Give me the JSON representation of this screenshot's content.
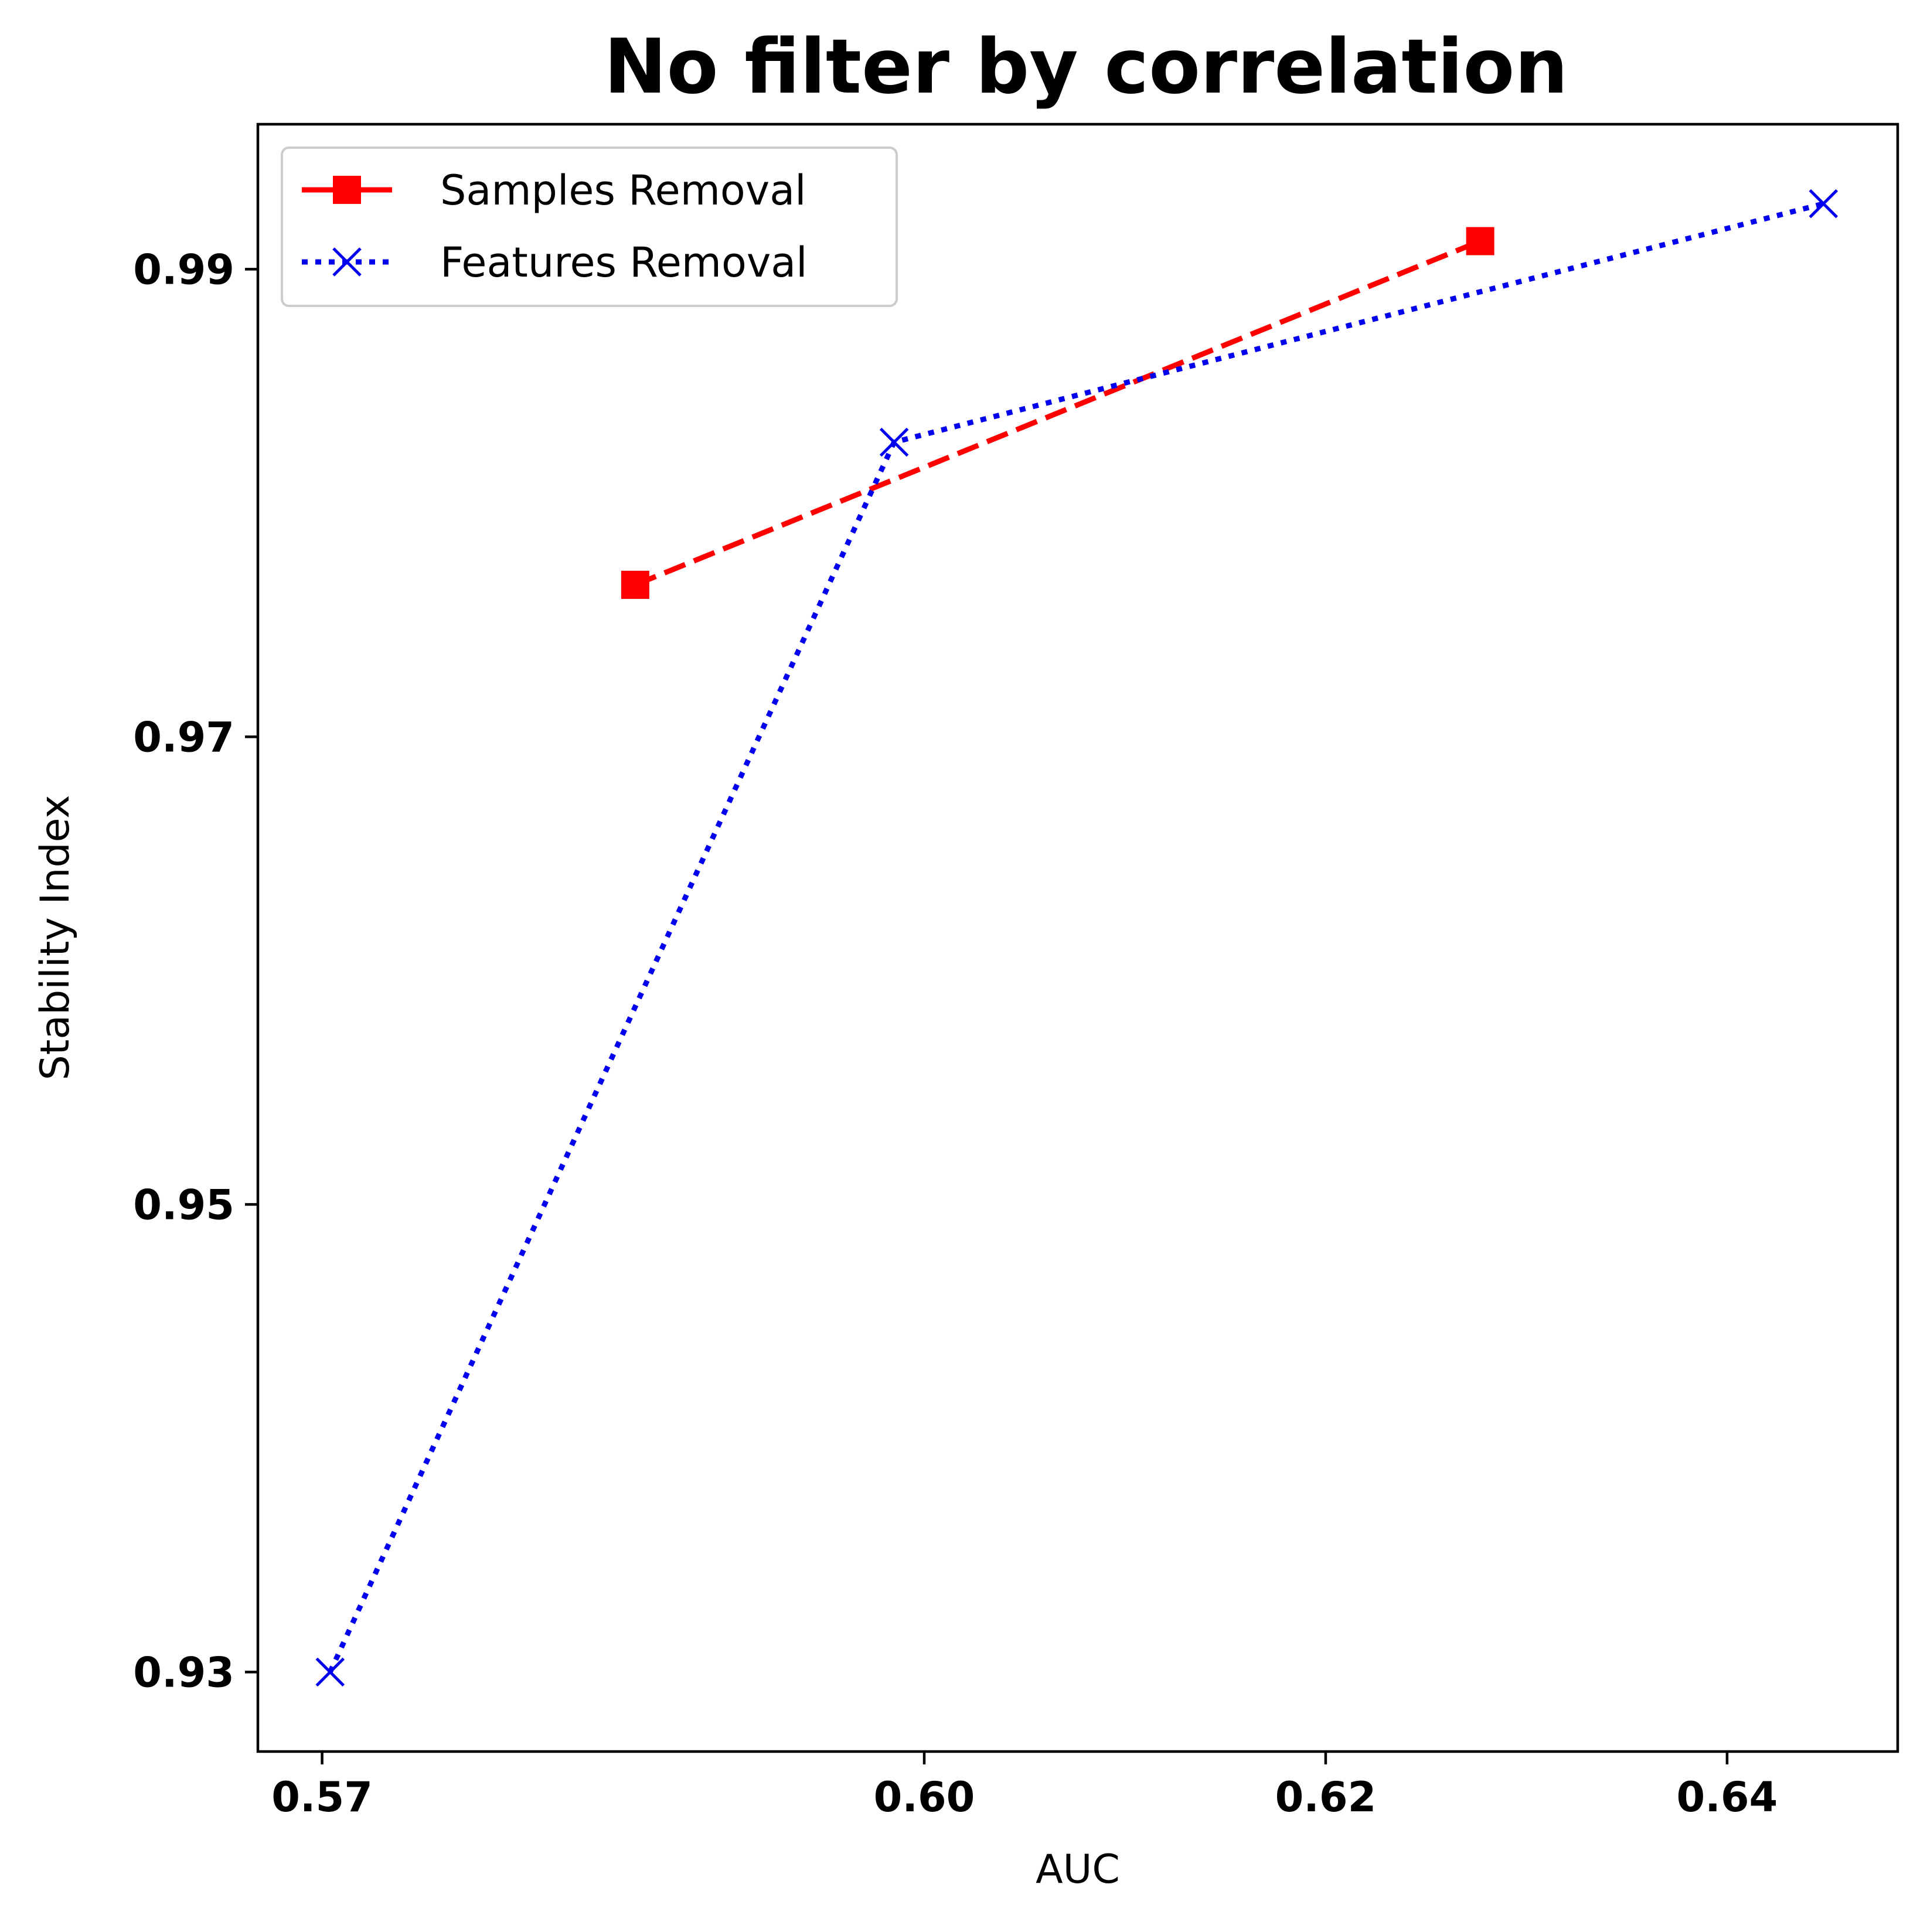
{
  "chart_data": {
    "type": "line",
    "title": "No filter by correlation",
    "xlabel": "AUC",
    "ylabel": "Stability Index",
    "xlim": [
      0.5668,
      0.6485
    ],
    "ylim": [
      0.9266,
      0.9962
    ],
    "xticks": [
      0.57,
      0.6,
      0.62,
      0.64
    ],
    "xtick_labels": [
      "0.57",
      "0.60",
      "0.62",
      "0.64"
    ],
    "yticks": [
      0.93,
      0.95,
      0.97,
      0.99
    ],
    "ytick_labels": [
      "0.93",
      "0.95",
      "0.97",
      "0.99"
    ],
    "grid": false,
    "legend_position": "upper-left",
    "series": [
      {
        "name": "Samples Removal",
        "color": "#ff0000",
        "line_style": "dashed",
        "marker": "square",
        "x": [
          0.5856,
          0.6277
        ],
        "y": [
          0.9765,
          0.9912
        ]
      },
      {
        "name": "Features Removal",
        "color": "#0000ee",
        "line_style": "dotted",
        "marker": "x",
        "x": [
          0.5704,
          0.5985,
          0.6448
        ],
        "y": [
          0.93,
          0.9826,
          0.9928
        ]
      }
    ]
  }
}
